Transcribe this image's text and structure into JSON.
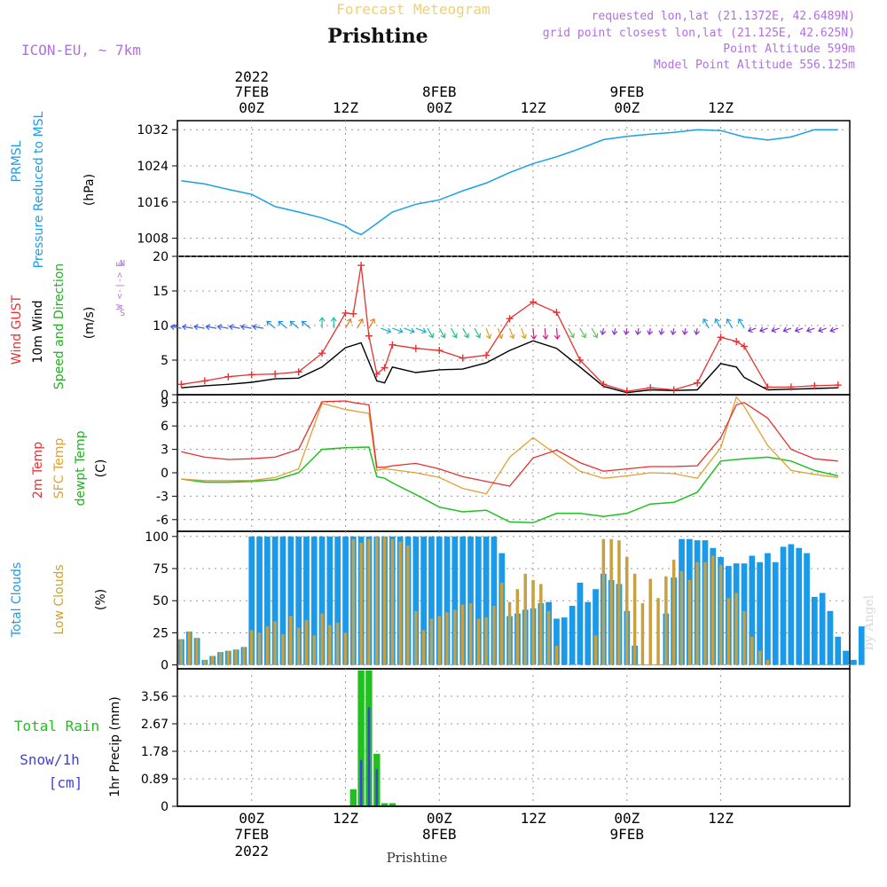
{
  "header": {
    "title": "Forecast Meteogram",
    "station": "Prishtine",
    "model": "ICON-EU, ~ 7km",
    "requested": "requested lon,lat (21.1372E, 42.6489N)",
    "grid_point": "grid point closest lon,lat (21.125E, 42.625N)",
    "point_altitude": "Point Altitude 599m",
    "model_altitude": "Model Point Altitude 556.125m"
  },
  "top_axis": {
    "labels": [
      {
        "line1": "2022",
        "line2": "7FEB",
        "line3": "00Z",
        "h": 0
      },
      {
        "line1": "",
        "line2": "",
        "line3": "12Z",
        "h": 12
      },
      {
        "line1": "",
        "line2": "8FEB",
        "line3": "00Z",
        "h": 24
      },
      {
        "line1": "",
        "line2": "",
        "line3": "12Z",
        "h": 36
      },
      {
        "line1": "",
        "line2": "9FEB",
        "line3": "00Z",
        "h": 48
      },
      {
        "line1": "",
        "line2": "",
        "line3": "12Z",
        "h": 60
      }
    ]
  },
  "bottom_axis": {
    "labels": [
      {
        "line1": "00Z",
        "line2": "7FEB",
        "line3": "2022",
        "h": 0
      },
      {
        "line1": "12Z",
        "line2": "",
        "line3": "",
        "h": 12
      },
      {
        "line1": "00Z",
        "line2": "8FEB",
        "line3": "",
        "h": 24
      },
      {
        "line1": "12Z",
        "line2": "",
        "line3": "",
        "h": 36
      },
      {
        "line1": "00Z",
        "line2": "9FEB",
        "line3": "",
        "h": 48
      },
      {
        "line1": "12Z",
        "line2": "",
        "line3": "",
        "h": 60
      }
    ],
    "footer": "Prishtine"
  },
  "watermark": "by Angel",
  "colors": {
    "pressure": "#1aa0e8",
    "gust": "#e83030",
    "wind": "#000000",
    "temp": "#e83030",
    "sfc": "#e0a030",
    "dewpt": "#20c020",
    "total_clouds": "#1a9ae8",
    "low_clouds": "#c8a040",
    "rain": "#20c020",
    "snow": "#4040e0",
    "model": "#b070e0"
  },
  "panels": {
    "pressure": {
      "ylabel1": "PRMSL",
      "ylabel2": "Pressure Reduced to MSL",
      "unit": "(hPa)"
    },
    "wind": {
      "ylabel_gust": "Wind GUST",
      "ylabel_wind": "10m Wind",
      "ylabel_dir": "Speed and Direction",
      "unit": "(m/s)",
      "compass_ns_top": "N",
      "compass_ns_bottom": "S",
      "compass_we": "W <-|-> E"
    },
    "temp": {
      "ylabel1": "2m Temp",
      "ylabel2": "SFC Temp",
      "ylabel3": "dewpt Temp",
      "unit": "(C)"
    },
    "clouds": {
      "ylabel1": "Total Clouds",
      "ylabel2": "Low Clouds",
      "unit": "(%)"
    },
    "precip": {
      "ylabel_rain": "Total Rain",
      "ylabel_snow": "Snow/1h",
      "ylabel_cm": "[cm]",
      "unit": "1hr Precip (mm)"
    }
  },
  "chart_data": [
    {
      "type": "line",
      "id": "pressure",
      "ylabel": "(hPa)",
      "ylim": [
        1004,
        1034
      ],
      "yticks": [
        1008,
        1016,
        1024,
        1032
      ],
      "series": [
        {
          "name": "PRMSL",
          "x": [
            -9,
            -6,
            -3,
            0,
            3,
            6,
            9,
            12,
            13,
            14,
            15,
            18,
            21,
            24,
            27,
            30,
            33,
            36,
            39,
            42,
            45,
            48,
            51,
            54,
            57,
            60,
            63,
            66,
            69,
            72,
            75
          ],
          "values": [
            1020.7,
            1020,
            1018.8,
            1017.7,
            1015,
            1013.8,
            1012.5,
            1010.7,
            1009.5,
            1008.8,
            1010,
            1013.8,
            1015.5,
            1016.5,
            1018.5,
            1020.2,
            1022.5,
            1024.5,
            1026,
            1027.8,
            1029.8,
            1030.5,
            1031,
            1031.4,
            1032,
            1031.8,
            1030.4,
            1029.7,
            1030.4,
            1032,
            1032
          ]
        }
      ]
    },
    {
      "type": "line",
      "id": "wind",
      "ylabel": "(m/s)",
      "ylim": [
        0,
        20
      ],
      "yticks": [
        0,
        5,
        10,
        15,
        20
      ],
      "series": [
        {
          "name": "Wind GUST",
          "x": [
            -9,
            -6,
            -3,
            0,
            3,
            6,
            9,
            12,
            13,
            14,
            15,
            16,
            17,
            18,
            21,
            24,
            27,
            30,
            33,
            36,
            39,
            42,
            45,
            48,
            51,
            54,
            57,
            60,
            62,
            63,
            66,
            69,
            72,
            75
          ],
          "values": [
            1.5,
            2,
            2.6,
            2.9,
            3,
            3.3,
            6,
            11.8,
            11.7,
            18.7,
            8.5,
            3,
            3.9,
            7.2,
            6.7,
            6.4,
            5.3,
            5.7,
            11,
            13.4,
            11.9,
            5,
            1.5,
            0.5,
            1,
            0.7,
            1.7,
            8.3,
            7.7,
            7,
            1.1,
            1.1,
            1.3,
            1.4
          ]
        },
        {
          "name": "10m Wind",
          "x": [
            -9,
            -6,
            -3,
            0,
            3,
            6,
            9,
            12,
            14,
            16,
            17,
            18,
            21,
            24,
            27,
            30,
            33,
            36,
            39,
            42,
            45,
            48,
            51,
            54,
            57,
            60,
            62,
            63,
            66,
            69,
            72,
            75
          ],
          "values": [
            1,
            1.3,
            1.5,
            1.8,
            2.3,
            2.4,
            4,
            6.8,
            7.5,
            2,
            1.7,
            4,
            3.2,
            3.6,
            3.7,
            4.6,
            6.4,
            7.8,
            6.7,
            4,
            1.2,
            0.3,
            0.7,
            0.6,
            0.7,
            4.5,
            4,
            2.5,
            0.7,
            0.8,
            0.9,
            1
          ]
        }
      ]
    },
    {
      "type": "line",
      "id": "temp",
      "ylabel": "(C)",
      "ylim": [
        -7.5,
        10
      ],
      "yticks": [
        -6,
        -3,
        0,
        3,
        6,
        9
      ],
      "series": [
        {
          "name": "2m Temp",
          "x": [
            -9,
            -6,
            -3,
            0,
            3,
            6,
            9,
            12,
            13,
            15,
            16,
            17,
            18,
            21,
            24,
            27,
            30,
            33,
            36,
            39,
            42,
            45,
            48,
            51,
            54,
            57,
            60,
            62,
            63,
            66,
            69,
            72,
            75
          ],
          "values": [
            2.7,
            2,
            1.7,
            1.8,
            2,
            3,
            9.1,
            9.2,
            9,
            8.7,
            0.7,
            0.7,
            0.9,
            1.2,
            0.5,
            -0.5,
            -1.1,
            -1.7,
            1.9,
            2.9,
            1.3,
            0.2,
            0.5,
            0.8,
            0.8,
            0.9,
            4.5,
            8.7,
            9,
            7,
            3,
            1.8,
            1.5
          ]
        },
        {
          "name": "SFC Temp",
          "x": [
            -9,
            -6,
            -3,
            0,
            3,
            6,
            9,
            12,
            15,
            16,
            17,
            18,
            21,
            24,
            27,
            30,
            33,
            36,
            39,
            42,
            45,
            48,
            51,
            54,
            57,
            60,
            62,
            63,
            66,
            69,
            72,
            75
          ],
          "values": [
            -0.8,
            -1,
            -1,
            -1,
            -0.6,
            0.5,
            8.9,
            8.1,
            7.6,
            0.3,
            0.5,
            0.4,
            0,
            -0.6,
            -2,
            -2.7,
            2,
            4.5,
            2.3,
            0.2,
            -0.7,
            -0.4,
            0,
            -0.1,
            -0.7,
            3.2,
            9.7,
            8.5,
            3.5,
            0.3,
            -0.2,
            -0.6
          ]
        },
        {
          "name": "dewpt Temp",
          "x": [
            -9,
            -6,
            -3,
            0,
            3,
            6,
            9,
            12,
            15,
            16,
            17,
            18,
            21,
            24,
            27,
            30,
            33,
            36,
            39,
            42,
            45,
            48,
            51,
            54,
            57,
            60,
            62,
            63,
            66,
            69,
            72,
            75
          ],
          "values": [
            -0.8,
            -1.2,
            -1.2,
            -1.1,
            -0.9,
            0,
            3,
            3.2,
            3.3,
            -0.5,
            -0.7,
            -1.3,
            -2.8,
            -4.4,
            -5,
            -4.8,
            -6.3,
            -6.4,
            -5.2,
            -5.2,
            -5.6,
            -5.2,
            -4,
            -3.8,
            -2.5,
            1.5,
            1.7,
            1.8,
            2,
            1.5,
            0.3,
            -0.4
          ]
        }
      ]
    },
    {
      "type": "bar",
      "id": "clouds",
      "ylabel": "(%)",
      "ylim": [
        -3,
        104
      ],
      "yticks": [
        0,
        25,
        50,
        75,
        100
      ],
      "series": [
        {
          "name": "Total Clouds",
          "x_start": -9,
          "values": [
            20,
            26,
            21,
            4,
            7,
            10,
            11,
            12,
            14,
            100,
            100,
            100,
            100,
            100,
            100,
            100,
            100,
            100,
            100,
            100,
            100,
            100,
            100,
            100,
            100,
            100,
            100,
            100,
            100,
            100,
            100,
            100,
            100,
            100,
            100,
            100,
            100,
            100,
            100,
            100,
            100,
            87,
            38,
            40,
            43,
            44,
            48,
            49,
            36,
            37,
            46,
            64,
            49,
            59,
            71,
            66,
            63,
            42,
            15,
            0,
            0,
            0,
            40,
            68,
            98,
            98,
            97,
            97,
            91,
            84,
            77,
            79,
            79,
            85,
            80,
            87,
            80,
            92,
            94,
            91,
            87,
            53,
            56,
            42,
            22,
            11,
            4,
            30,
            0,
            0,
            0,
            0
          ]
        },
        {
          "name": "Low Clouds",
          "x_start": -9,
          "values": [
            20,
            26,
            21,
            4,
            7,
            10,
            11,
            12,
            14,
            27,
            25,
            30,
            34,
            24,
            38,
            29,
            35,
            23,
            40,
            31,
            33,
            25,
            98,
            95,
            98,
            100,
            100,
            98,
            96,
            93,
            42,
            27,
            36,
            38,
            41,
            43,
            47,
            48,
            36,
            37,
            46,
            64,
            49,
            59,
            71,
            66,
            63,
            42,
            15,
            0,
            0,
            0,
            0,
            23,
            98,
            98,
            97,
            84,
            71,
            48,
            67,
            52,
            69,
            82,
            73,
            66,
            80,
            80,
            85,
            78,
            52,
            56,
            42,
            22,
            11,
            4,
            0,
            0,
            0,
            0,
            0,
            0,
            0,
            0,
            0,
            0,
            0,
            0,
            0,
            0,
            0,
            0
          ]
        }
      ]
    },
    {
      "type": "bar",
      "id": "precip",
      "ylabel": "1hr Precip (mm)",
      "ylim": [
        0,
        4.45
      ],
      "yticks": [
        0,
        0.89,
        1.78,
        2.67,
        3.56
      ],
      "series": [
        {
          "name": "Total Rain",
          "x": [
            13,
            14,
            15,
            16,
            17,
            18,
            19,
            20
          ],
          "values": [
            0.55,
            4.4,
            4.4,
            1.7,
            0.1,
            0.1,
            0.02,
            0.02
          ]
        },
        {
          "name": "Snow/1h",
          "x": [
            13,
            14,
            15,
            16,
            17,
            18,
            19,
            20
          ],
          "values": [
            0,
            1.5,
            3.2,
            1.2,
            0,
            0,
            0,
            0
          ]
        }
      ]
    }
  ]
}
